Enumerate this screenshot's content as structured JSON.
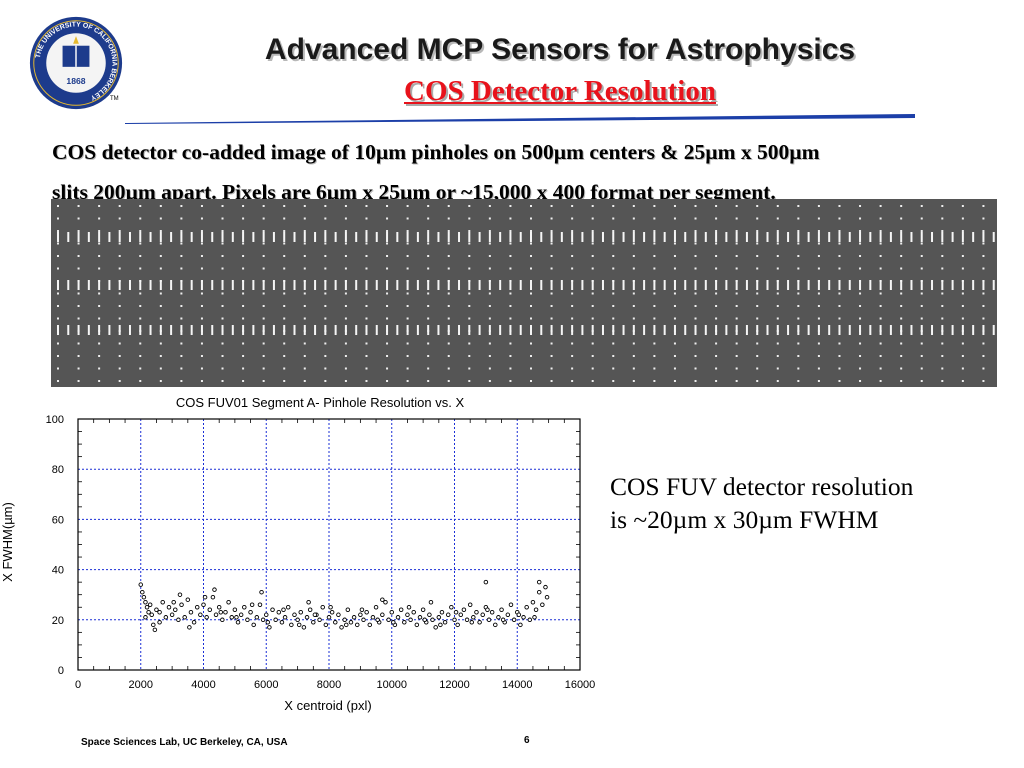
{
  "slide": {
    "title": "Advanced MCP Sensors for Astrophysics",
    "subtitle": "COS Detector Resolution",
    "description_line1": "COS detector co-added image of 10µm pinholes on 500µm centers & 25µm x 500µm",
    "description_line2": "slits 200µm apart. Pixels are 6µm x 25µm or ~15,000 x 400 format per segment.",
    "side_note_line1": "COS FUV detector resolution",
    "side_note_line2": "is ~20µm x 30µm FWHM",
    "footer": "Space Sciences Lab, UC Berkeley, CA, USA",
    "page_number": "6",
    "tm_mark": "TM"
  },
  "seal": {
    "ring_text": "THE UNIVERSITY OF CALIFORNIA BERKELEY",
    "year": "1868",
    "colors": {
      "blue": "#1d3b8c",
      "gold": "#e6b92e"
    }
  },
  "colors": {
    "subtitle_red": "#e8121b",
    "rule_blue": "#1c3fa8",
    "grid_blue": "#1a2fd6",
    "strip_gray": "#555555"
  },
  "chart_data": {
    "type": "scatter",
    "title": "COS FUV01 Segment A- Pinhole Resolution vs. X",
    "xlabel": "X centroid (pxl)",
    "ylabel": "X FWHM(µm)",
    "xlim": [
      0,
      16000
    ],
    "ylim": [
      0,
      100
    ],
    "xticks": [
      0,
      2000,
      4000,
      6000,
      8000,
      10000,
      12000,
      14000,
      16000
    ],
    "yticks": [
      0,
      20,
      40,
      60,
      80,
      100
    ],
    "grid": true,
    "marker": "open-circle",
    "series": [
      {
        "values": [
          [
            2000,
            34
          ],
          [
            2050,
            31
          ],
          [
            2100,
            29
          ],
          [
            2150,
            27
          ],
          [
            2200,
            25
          ],
          [
            2250,
            23
          ],
          [
            2300,
            26
          ],
          [
            2350,
            22
          ],
          [
            2400,
            18
          ],
          [
            2450,
            16
          ],
          [
            2500,
            24
          ],
          [
            2600,
            23
          ],
          [
            2700,
            27
          ],
          [
            2800,
            21
          ],
          [
            2900,
            25
          ],
          [
            3000,
            22
          ],
          [
            3100,
            24
          ],
          [
            3200,
            20
          ],
          [
            3300,
            26
          ],
          [
            3400,
            21
          ],
          [
            3500,
            28
          ],
          [
            3600,
            23
          ],
          [
            3700,
            19
          ],
          [
            3800,
            25
          ],
          [
            3900,
            22
          ],
          [
            4000,
            26
          ],
          [
            4100,
            21
          ],
          [
            4200,
            24
          ],
          [
            4300,
            29
          ],
          [
            4400,
            22
          ],
          [
            4500,
            25
          ],
          [
            4600,
            20
          ],
          [
            4700,
            23
          ],
          [
            4800,
            27
          ],
          [
            4900,
            21
          ],
          [
            5000,
            24
          ],
          [
            5100,
            19
          ],
          [
            5200,
            22
          ],
          [
            5300,
            25
          ],
          [
            5400,
            20
          ],
          [
            5500,
            23
          ],
          [
            5600,
            18
          ],
          [
            5700,
            21
          ],
          [
            5800,
            26
          ],
          [
            5900,
            20
          ],
          [
            6000,
            22
          ],
          [
            6100,
            17
          ],
          [
            6200,
            24
          ],
          [
            6300,
            20
          ],
          [
            6400,
            23
          ],
          [
            6500,
            19
          ],
          [
            6600,
            21
          ],
          [
            6700,
            25
          ],
          [
            6800,
            18
          ],
          [
            6900,
            22
          ],
          [
            7000,
            20
          ],
          [
            7100,
            23
          ],
          [
            7200,
            17
          ],
          [
            7300,
            21
          ],
          [
            7400,
            24
          ],
          [
            7500,
            19
          ],
          [
            7600,
            22
          ],
          [
            7700,
            20
          ],
          [
            7800,
            25
          ],
          [
            7900,
            18
          ],
          [
            8000,
            21
          ],
          [
            8100,
            23
          ],
          [
            8200,
            19
          ],
          [
            8300,
            22
          ],
          [
            8400,
            17
          ],
          [
            8500,
            20
          ],
          [
            8600,
            24
          ],
          [
            8700,
            19
          ],
          [
            8800,
            21
          ],
          [
            8900,
            18
          ],
          [
            9000,
            22
          ],
          [
            9100,
            20
          ],
          [
            9200,
            23
          ],
          [
            9300,
            18
          ],
          [
            9400,
            21
          ],
          [
            9500,
            25
          ],
          [
            9600,
            19
          ],
          [
            9700,
            22
          ],
          [
            9800,
            27
          ],
          [
            9900,
            20
          ],
          [
            10000,
            23
          ],
          [
            10100,
            18
          ],
          [
            10200,
            21
          ],
          [
            10300,
            24
          ],
          [
            10400,
            19
          ],
          [
            10500,
            22
          ],
          [
            10600,
            20
          ],
          [
            10700,
            23
          ],
          [
            10800,
            18
          ],
          [
            10900,
            21
          ],
          [
            11000,
            24
          ],
          [
            11100,
            19
          ],
          [
            11200,
            22
          ],
          [
            11300,
            20
          ],
          [
            11400,
            17
          ],
          [
            11500,
            21
          ],
          [
            11600,
            23
          ],
          [
            11700,
            19
          ],
          [
            11800,
            22
          ],
          [
            11900,
            25
          ],
          [
            12000,
            20
          ],
          [
            12100,
            18
          ],
          [
            12200,
            22
          ],
          [
            12300,
            24
          ],
          [
            12400,
            20
          ],
          [
            12500,
            26
          ],
          [
            12600,
            21
          ],
          [
            12700,
            23
          ],
          [
            12800,
            19
          ],
          [
            12900,
            22
          ],
          [
            13000,
            25
          ],
          [
            13100,
            20
          ],
          [
            13200,
            23
          ],
          [
            13300,
            18
          ],
          [
            13400,
            21
          ],
          [
            13500,
            24
          ],
          [
            13600,
            19
          ],
          [
            13700,
            22
          ],
          [
            13800,
            26
          ],
          [
            13900,
            20
          ],
          [
            14000,
            23
          ],
          [
            14100,
            18
          ],
          [
            14200,
            21
          ],
          [
            14300,
            25
          ],
          [
            14400,
            20
          ],
          [
            14500,
            27
          ],
          [
            14600,
            24
          ],
          [
            14700,
            31
          ],
          [
            14800,
            26
          ],
          [
            14900,
            33
          ],
          [
            14950,
            29
          ],
          [
            2150,
            21
          ],
          [
            2600,
            19
          ],
          [
            3050,
            27
          ],
          [
            3550,
            17
          ],
          [
            4050,
            29
          ],
          [
            4550,
            23
          ],
          [
            5050,
            21
          ],
          [
            5550,
            26
          ],
          [
            6050,
            19
          ],
          [
            6550,
            24
          ],
          [
            7050,
            18
          ],
          [
            7550,
            22
          ],
          [
            8050,
            25
          ],
          [
            8550,
            18
          ],
          [
            9050,
            24
          ],
          [
            9550,
            20
          ],
          [
            10050,
            19
          ],
          [
            10550,
            25
          ],
          [
            11050,
            20
          ],
          [
            11550,
            18
          ],
          [
            12050,
            23
          ],
          [
            12550,
            19
          ],
          [
            13050,
            24
          ],
          [
            13550,
            20
          ],
          [
            14050,
            22
          ],
          [
            14550,
            21
          ],
          [
            3250,
            30
          ],
          [
            4350,
            32
          ],
          [
            5850,
            31
          ],
          [
            7350,
            27
          ],
          [
            9700,
            28
          ],
          [
            11250,
            27
          ],
          [
            13000,
            35
          ],
          [
            14700,
            35
          ]
        ]
      }
    ]
  }
}
